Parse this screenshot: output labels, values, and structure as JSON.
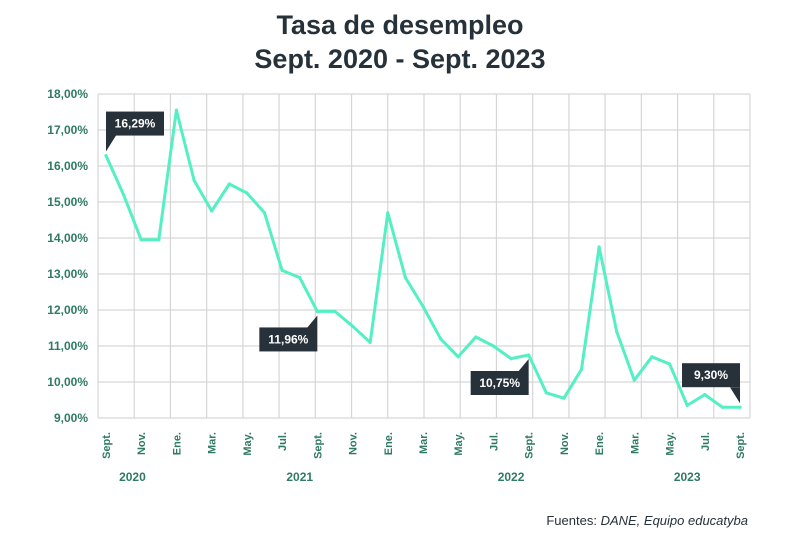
{
  "chart_data": {
    "type": "line",
    "title_line1": "Tasa de desempleo",
    "title_line2": "Sept. 2020 - Sept. 2023",
    "source_prefix": "Fuentes:",
    "source_names": "DANE, Equipo educatyba",
    "ylim": [
      9,
      18
    ],
    "yticks": [
      "18,00%",
      "17,00%",
      "16,00%",
      "15,00%",
      "14,00%",
      "13,00%",
      "12,00%",
      "11,00%",
      "10,00%",
      "9,00%"
    ],
    "ytick_values": [
      18,
      17,
      16,
      15,
      14,
      13,
      12,
      11,
      10,
      9
    ],
    "x_tick_labels": [
      "Sept.",
      "Nov.",
      "Ene.",
      "Mar.",
      "May.",
      "Jul.",
      "Sept.",
      "Nov.",
      "Ene.",
      "Mar.",
      "May.",
      "Jul.",
      "Sept.",
      "Nov.",
      "Ene.",
      "Mar.",
      "May.",
      "Jul.",
      "Sept."
    ],
    "years": [
      {
        "label": "2020",
        "month_index": 1.5
      },
      {
        "label": "2021",
        "month_index": 11
      },
      {
        "label": "2022",
        "month_index": 23
      },
      {
        "label": "2023",
        "month_index": 33
      }
    ],
    "values": [
      16.29,
      15.2,
      13.95,
      13.95,
      17.55,
      15.6,
      14.75,
      15.5,
      15.25,
      14.7,
      13.1,
      12.9,
      11.96,
      11.96,
      11.55,
      11.1,
      14.7,
      12.9,
      12.1,
      11.2,
      10.7,
      11.25,
      11.0,
      10.65,
      10.75,
      9.7,
      9.55,
      10.35,
      13.75,
      11.4,
      10.05,
      10.7,
      10.5,
      9.35,
      9.65,
      9.3,
      9.3
    ],
    "grid": true,
    "line_color": "#55efc4",
    "label_bg": "#26313a",
    "tick_color": "#2e7a63",
    "annotations": [
      {
        "text": "16,29%",
        "index": 0,
        "placement": "above-right"
      },
      {
        "text": "11,96%",
        "index": 12,
        "placement": "below-left"
      },
      {
        "text": "10,75%",
        "index": 24,
        "placement": "below-left"
      },
      {
        "text": "9,30%",
        "index": 36,
        "placement": "above-left"
      }
    ]
  }
}
